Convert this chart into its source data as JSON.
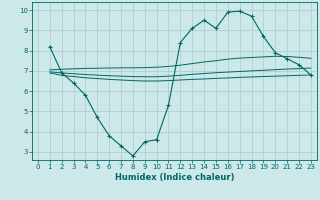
{
  "xlabel": "Humidex (Indice chaleur)",
  "ylabel": "",
  "bg_color": "#cce8e8",
  "grid_color": "#aacccc",
  "line_color": "#006666",
  "x_ticks": [
    0,
    1,
    2,
    3,
    4,
    5,
    6,
    7,
    8,
    9,
    10,
    11,
    12,
    13,
    14,
    15,
    16,
    17,
    18,
    19,
    20,
    21,
    22,
    23
  ],
  "y_ticks": [
    3,
    4,
    5,
    6,
    7,
    8,
    9,
    10
  ],
  "ylim": [
    2.6,
    10.4
  ],
  "xlim": [
    -0.5,
    23.5
  ],
  "main_x": [
    1,
    2,
    3,
    4,
    5,
    6,
    7,
    8,
    9,
    10,
    11,
    12,
    13,
    14,
    15,
    16,
    17,
    18,
    19,
    20,
    21,
    22,
    23
  ],
  "main_y": [
    8.2,
    6.9,
    6.4,
    5.8,
    4.7,
    3.8,
    3.3,
    2.8,
    3.5,
    3.6,
    5.3,
    8.4,
    9.1,
    9.5,
    9.1,
    9.9,
    9.95,
    9.7,
    8.7,
    7.9,
    7.6,
    7.3,
    6.8
  ],
  "band1_x": [
    1,
    2,
    3,
    4,
    5,
    6,
    7,
    8,
    9,
    10,
    11,
    12,
    13,
    14,
    15,
    16,
    17,
    18,
    19,
    20,
    21,
    22,
    23
  ],
  "band1_y": [
    6.9,
    6.78,
    6.72,
    6.66,
    6.62,
    6.58,
    6.55,
    6.52,
    6.5,
    6.5,
    6.52,
    6.55,
    6.58,
    6.6,
    6.63,
    6.65,
    6.68,
    6.7,
    6.72,
    6.74,
    6.76,
    6.78,
    6.8
  ],
  "band2_x": [
    1,
    2,
    3,
    4,
    5,
    6,
    7,
    8,
    9,
    10,
    11,
    12,
    13,
    14,
    15,
    16,
    17,
    18,
    19,
    20,
    21,
    22,
    23
  ],
  "band2_y": [
    6.95,
    6.9,
    6.86,
    6.82,
    6.79,
    6.76,
    6.74,
    6.72,
    6.71,
    6.71,
    6.74,
    6.78,
    6.83,
    6.87,
    6.91,
    6.94,
    6.97,
    7.0,
    7.03,
    7.06,
    7.09,
    7.11,
    7.14
  ],
  "band3_x": [
    1,
    2,
    3,
    4,
    5,
    6,
    7,
    8,
    9,
    10,
    11,
    12,
    13,
    14,
    15,
    16,
    17,
    18,
    19,
    20,
    21,
    22,
    23
  ],
  "band3_y": [
    7.05,
    7.08,
    7.1,
    7.12,
    7.13,
    7.14,
    7.15,
    7.15,
    7.16,
    7.18,
    7.22,
    7.28,
    7.36,
    7.44,
    7.5,
    7.58,
    7.63,
    7.66,
    7.69,
    7.72,
    7.71,
    7.67,
    7.62
  ]
}
